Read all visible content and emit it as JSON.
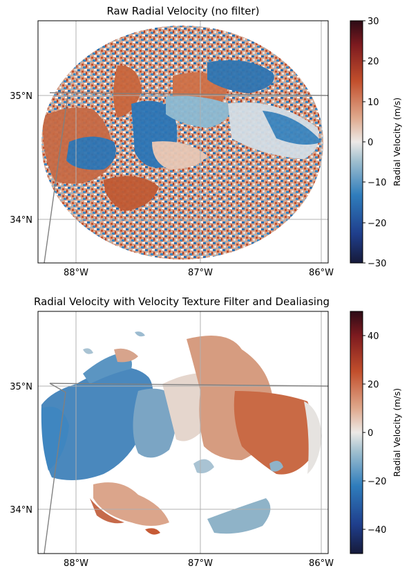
{
  "panels": [
    {
      "title": "Raw Radial Velocity (no filter)",
      "lat_ticks": [
        "35°N",
        "34°N"
      ],
      "lon_ticks": [
        "88°W",
        "87°W",
        "86°W"
      ],
      "colorbar": {
        "label": "Radial Velocity (m/s)",
        "ticks": [
          "30",
          "20",
          "10",
          "0",
          "−10",
          "−20",
          "−30"
        ],
        "vmin": -30,
        "vmax": 30
      },
      "mode": "raw"
    },
    {
      "title": "Radial Velocity with Velocity Texture Filter and Dealiasing",
      "lat_ticks": [
        "35°N",
        "34°N"
      ],
      "lon_ticks": [
        "88°W",
        "87°W",
        "86°W"
      ],
      "colorbar": {
        "label": "Radial Velocity (m/s)",
        "ticks": [
          "40",
          "20",
          "0",
          "−20",
          "−40"
        ],
        "vmin": -50,
        "vmax": 50
      },
      "mode": "filtered"
    }
  ],
  "colors": {
    "inbound_strong": "#1b2a6b",
    "inbound": "#2d78b8",
    "neutral": "#e6e3e0",
    "outbound": "#c9603a",
    "outbound_strong": "#4a0f12",
    "grid": "#b0b0b0",
    "border": "#808080"
  },
  "chart_data": [
    {
      "type": "heatmap",
      "title": "Raw Radial Velocity (no filter)",
      "xlabel": "",
      "ylabel": "",
      "x_ticks": [
        "88°W",
        "87°W",
        "86°W"
      ],
      "y_ticks": [
        "35°N",
        "34°N"
      ],
      "colorbar_label": "Radial Velocity (m/s)",
      "colorbar_range": [
        -30,
        30
      ],
      "grid": true
    },
    {
      "type": "heatmap",
      "title": "Radial Velocity with Velocity Texture Filter and Dealiasing",
      "xlabel": "",
      "ylabel": "",
      "x_ticks": [
        "88°W",
        "87°W",
        "86°W"
      ],
      "y_ticks": [
        "35°N",
        "34°N"
      ],
      "colorbar_label": "Radial Velocity (m/s)",
      "colorbar_range": [
        -50,
        50
      ],
      "grid": true
    }
  ]
}
